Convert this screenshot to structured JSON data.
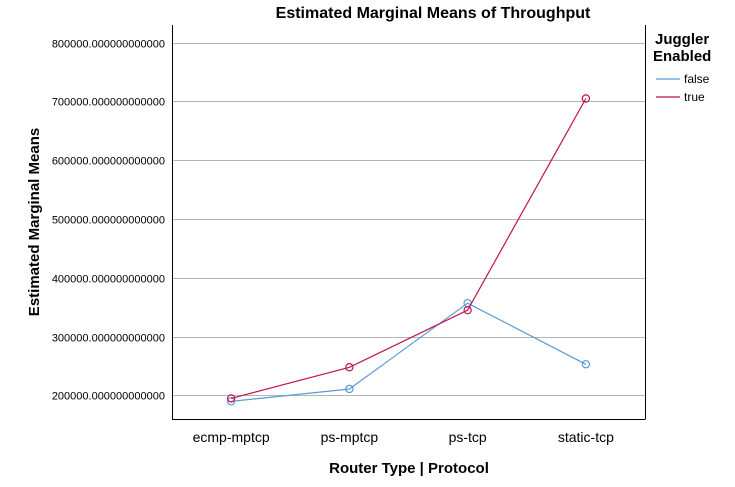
{
  "chart_data": {
    "type": "line",
    "title": "Estimated Marginal Means of Throughput",
    "xlabel": "Router Type | Protocol",
    "ylabel": "Estimated Marginal Means",
    "categories": [
      "ecmp-mptcp",
      "ps-mptcp",
      "ps-tcp",
      "static-tcp"
    ],
    "yticks": [
      {
        "value": 200000,
        "label": "200000.000000000000"
      },
      {
        "value": 300000,
        "label": "300000.000000000000"
      },
      {
        "value": 400000,
        "label": "400000.000000000000"
      },
      {
        "value": 500000,
        "label": "500000.000000000000"
      },
      {
        "value": 600000,
        "label": "600000.000000000000"
      },
      {
        "value": 700000,
        "label": "700000.000000000000"
      },
      {
        "value": 800000,
        "label": "800000.000000000000"
      }
    ],
    "ylim": [
      160000,
      830000
    ],
    "grid": true,
    "legend": {
      "title_lines": [
        "Juggler",
        "Enabled"
      ],
      "placement": "right"
    },
    "series": [
      {
        "name": "false",
        "color": "#5b9bd5",
        "values": [
          190000,
          211000,
          357000,
          253000
        ]
      },
      {
        "name": "true",
        "color": "#c0144c",
        "values": [
          195000,
          248000,
          345000,
          705000
        ]
      }
    ]
  }
}
